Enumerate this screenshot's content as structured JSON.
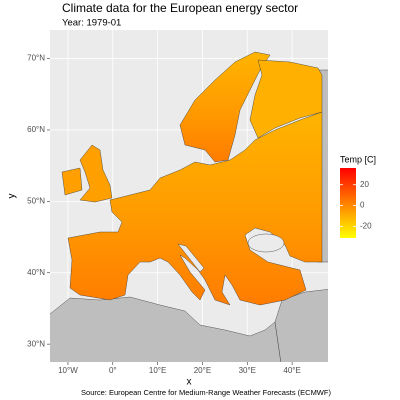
{
  "chart_data": {
    "type": "map",
    "title": "Climate data for the European energy sector",
    "subtitle": "Year: 1979-01",
    "x_label": "x",
    "y_label": "y",
    "xlim": [
      -14,
      48
    ],
    "ylim": [
      27.5,
      74
    ],
    "xticks": [
      {
        "value": -10,
        "label": "10°W"
      },
      {
        "value": 0,
        "label": "0°"
      },
      {
        "value": 10,
        "label": "10°E"
      },
      {
        "value": 20,
        "label": "20°E"
      },
      {
        "value": 30,
        "label": "30°E"
      },
      {
        "value": 40,
        "label": "40°E"
      }
    ],
    "yticks": [
      {
        "value": 30,
        "label": "30°N"
      },
      {
        "value": 40,
        "label": "40°N"
      },
      {
        "value": 50,
        "label": "50°N"
      },
      {
        "value": 60,
        "label": "60°N"
      },
      {
        "value": 70,
        "label": "70°N"
      }
    ],
    "grid": true,
    "legend": {
      "title": "Temp [C]",
      "limits": [
        -31,
        36
      ],
      "ticks": [
        20,
        0,
        -20
      ],
      "colorscale": [
        "#ffff00",
        "#ff0000"
      ]
    },
    "caption": "Source: European Centre for Medium-Range Weather Forecasts (ECMWF)"
  }
}
